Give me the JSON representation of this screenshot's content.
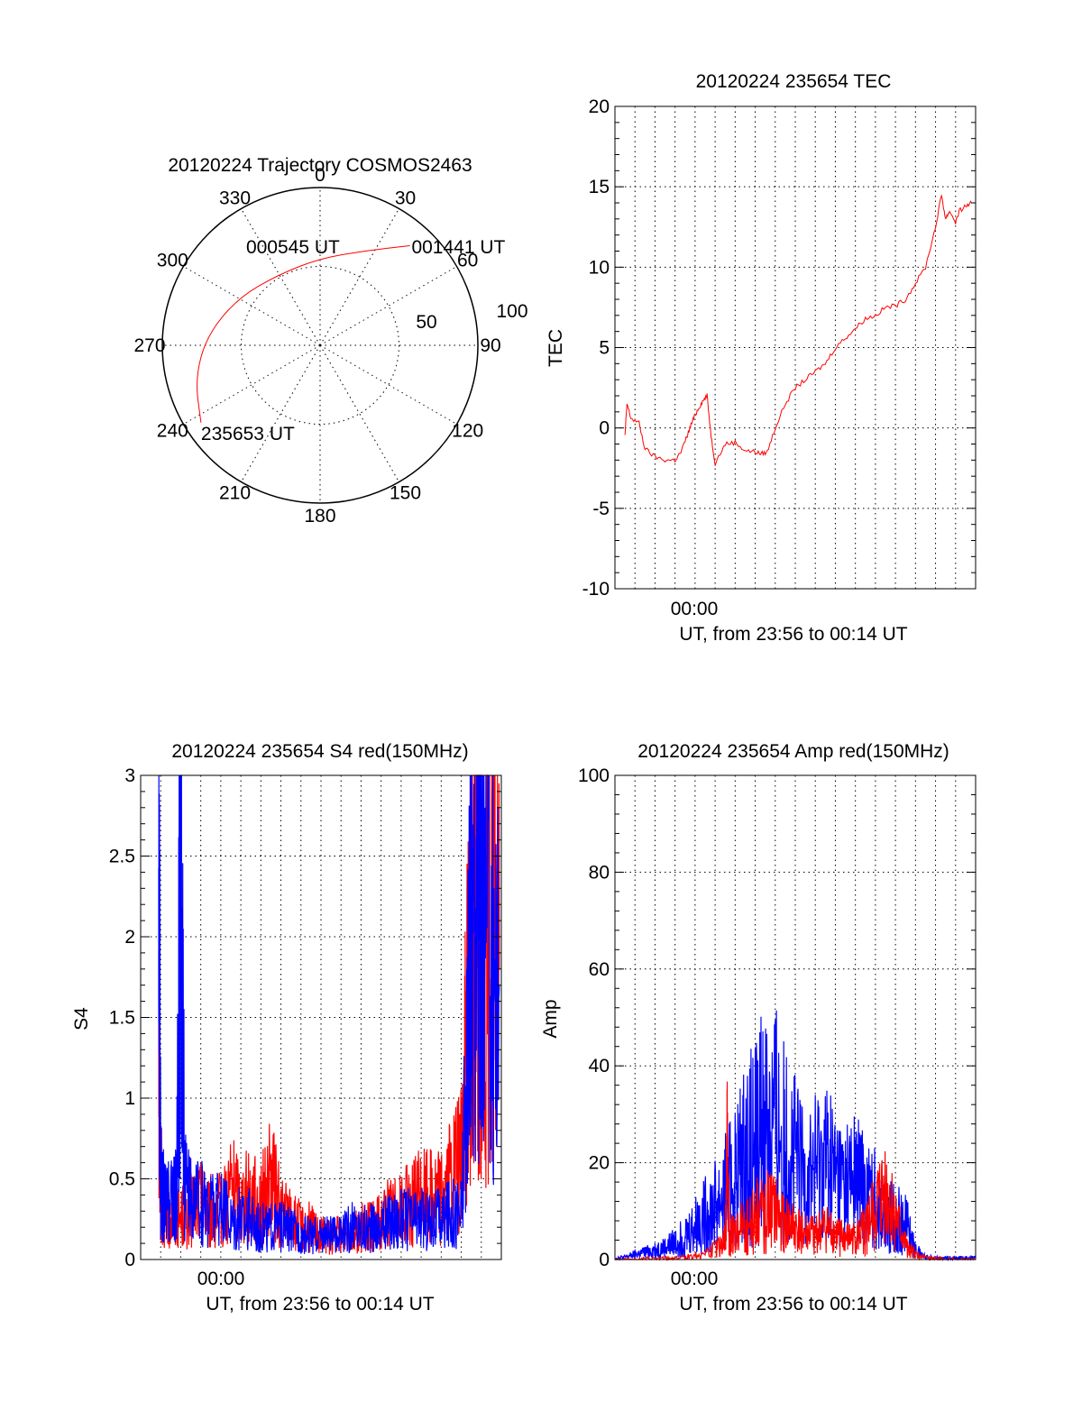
{
  "chart_data": [
    {
      "type": "polar",
      "title": "20120224 Trajectory COSMOS2463",
      "azimuth_labels": [
        "0",
        "30",
        "60",
        "90",
        "120",
        "150",
        "180",
        "210",
        "240",
        "270",
        "300",
        "330"
      ],
      "ring_labels": [
        "50",
        "100"
      ],
      "r_max": 100,
      "trajectory_color": "#ff0000",
      "trajectory": [
        {
          "az": 237,
          "el_r": 90
        },
        {
          "az": 255,
          "el_r": 82
        },
        {
          "az": 275,
          "el_r": 72
        },
        {
          "az": 300,
          "el_r": 60
        },
        {
          "az": 330,
          "el_r": 52
        },
        {
          "az": 0,
          "el_r": 55
        },
        {
          "az": 25,
          "el_r": 66
        },
        {
          "az": 42,
          "el_r": 85
        }
      ],
      "annotations": [
        {
          "text": "235653 UT",
          "az": 237,
          "el_r": 90
        },
        {
          "text": "000545 UT",
          "az": 336,
          "el_r": 38
        },
        {
          "text": "001441 UT",
          "az": 43,
          "el_r": 85
        }
      ]
    },
    {
      "type": "line",
      "title": "20120224 235654 TEC",
      "xlabel": "UT, from 23:56 to 00:14 UT",
      "ylabel": "TEC",
      "x_tick_label": "00:00",
      "ylim": [
        -10,
        20
      ],
      "yticks": [
        "-10",
        "-5",
        "0",
        "5",
        "10",
        "15",
        "20"
      ],
      "grid": true,
      "series": [
        {
          "color": "#ff0000",
          "x_min_after_2356": [
            0.5,
            0.6,
            0.8,
            1.2,
            1.5,
            2.0,
            2.5,
            3.0,
            3.3,
            3.6,
            3.8,
            4.0,
            4.2,
            4.4,
            4.6,
            4.8,
            5.0,
            5.5,
            6.0,
            6.5,
            7.0,
            7.3,
            7.6,
            8.0,
            8.5,
            9.0,
            9.5,
            10.0,
            10.5,
            11.0,
            11.5,
            12.0,
            12.5,
            13.0,
            13.5,
            14.0,
            14.5,
            15.0,
            15.5,
            16.0,
            16.3,
            16.5,
            16.7,
            17.0,
            17.2,
            17.5,
            17.8
          ],
          "values": [
            -0.5,
            1.5,
            0.6,
            0.3,
            -1.3,
            -1.8,
            -2.0,
            -2.0,
            -1.5,
            -0.5,
            0.2,
            0.8,
            1.3,
            1.7,
            2.0,
            -0.5,
            -2.2,
            -1.0,
            -0.9,
            -1.4,
            -1.5,
            -1.6,
            -1.5,
            0.0,
            1.5,
            2.5,
            3.0,
            3.5,
            4.0,
            5.0,
            5.6,
            6.2,
            6.8,
            7.0,
            7.5,
            7.6,
            8.0,
            9.0,
            10.0,
            12.5,
            14.5,
            13.0,
            13.5,
            12.8,
            13.5,
            13.8,
            14.0
          ]
        }
      ]
    },
    {
      "type": "line",
      "title": "20120224 235654 S4 red(150MHz)",
      "xlabel": "UT, from 23:56 to 00:14 UT",
      "ylabel": "S4",
      "x_tick_label": "00:00",
      "ylim": [
        0,
        3
      ],
      "yticks": [
        "0",
        "0.5",
        "1",
        "1.5",
        "2",
        "2.5",
        "3"
      ],
      "grid": true,
      "series": [
        {
          "color": "#ff0000",
          "x_min_after_2356": [
            0.9,
            1.0,
            1.2,
            1.5,
            2.0,
            2.5,
            3.0,
            3.5,
            4.0,
            4.5,
            5.0,
            5.5,
            6.0,
            6.5,
            7.0,
            7.5,
            8.0,
            8.5,
            9.0,
            9.5,
            10.0,
            10.5,
            11.0,
            11.5,
            12.0,
            12.5,
            13.0,
            13.5,
            14.0,
            14.5,
            15.0,
            15.5,
            16.0,
            16.3,
            16.5,
            16.8,
            17.0,
            17.5,
            17.9
          ],
          "values": [
            1.1,
            0.5,
            0.3,
            0.25,
            0.25,
            0.3,
            0.35,
            0.3,
            0.3,
            0.45,
            0.35,
            0.4,
            0.35,
            0.5,
            0.3,
            0.25,
            0.2,
            0.2,
            0.15,
            0.15,
            0.15,
            0.15,
            0.2,
            0.2,
            0.25,
            0.3,
            0.3,
            0.35,
            0.4,
            0.4,
            0.4,
            0.5,
            0.6,
            1.5,
            2.0,
            2.5,
            2.3,
            2.0,
            1.8
          ]
        },
        {
          "color": "#0000ff",
          "x_min_after_2356": [
            0.9,
            1.0,
            1.2,
            1.5,
            1.8,
            2.0,
            2.2,
            2.5,
            3.0,
            3.5,
            4.0,
            4.5,
            5.0,
            5.5,
            6.0,
            6.5,
            7.0,
            7.5,
            8.0,
            8.5,
            9.0,
            9.5,
            10.0,
            10.5,
            11.0,
            11.5,
            12.0,
            12.5,
            13.0,
            13.5,
            14.0,
            14.5,
            15.0,
            15.5,
            16.0,
            16.3,
            16.5,
            16.8,
            17.0,
            17.5,
            17.9
          ],
          "values": [
            2.5,
            0.5,
            0.35,
            0.35,
            0.4,
            2.8,
            0.45,
            0.35,
            0.35,
            0.35,
            0.3,
            0.25,
            0.25,
            0.25,
            0.2,
            0.2,
            0.2,
            0.18,
            0.15,
            0.15,
            0.15,
            0.15,
            0.15,
            0.2,
            0.2,
            0.2,
            0.2,
            0.25,
            0.25,
            0.25,
            0.25,
            0.25,
            0.25,
            0.3,
            0.3,
            1.2,
            2.0,
            2.5,
            2.2,
            1.9,
            1.7
          ]
        }
      ]
    },
    {
      "type": "line",
      "title": "20120224 235654 Amp red(150MHz)",
      "xlabel": "UT, from 23:56 to 00:14 UT",
      "ylabel": "Amp",
      "x_tick_label": "00:00",
      "ylim": [
        0,
        100
      ],
      "yticks": [
        "0",
        "20",
        "40",
        "60",
        "80",
        "100"
      ],
      "grid": true,
      "series": [
        {
          "color": "#0000ff",
          "x_min_after_2356": [
            0.0,
            0.5,
            1.0,
            1.5,
            2.0,
            2.5,
            3.0,
            3.5,
            4.0,
            4.5,
            5.0,
            5.5,
            6.0,
            6.5,
            7.0,
            7.5,
            8.0,
            8.5,
            9.0,
            9.5,
            10.0,
            10.5,
            11.0,
            11.5,
            12.0,
            12.5,
            13.0,
            13.5,
            14.0,
            14.5,
            15.0,
            15.5,
            16.0,
            16.5,
            17.0,
            17.5,
            18.0
          ],
          "values": [
            0.3,
            0.5,
            1.0,
            1.5,
            2.0,
            2.5,
            3.5,
            5.0,
            7.0,
            9.0,
            11.0,
            14.0,
            17.0,
            21.0,
            25.0,
            29.0,
            28.0,
            24.0,
            20.0,
            16.0,
            18.0,
            20.0,
            17.0,
            15.0,
            16.0,
            14.0,
            12.0,
            8.0,
            9.0,
            8.0,
            2.0,
            0.5,
            0.3,
            0.3,
            0.3,
            0.3,
            0.3
          ]
        },
        {
          "color": "#ff0000",
          "x_min_after_2356": [
            0.0,
            1.0,
            2.0,
            3.0,
            4.0,
            5.0,
            5.5,
            5.6,
            5.7,
            6.0,
            6.5,
            7.0,
            7.5,
            8.0,
            8.5,
            9.0,
            9.5,
            10.0,
            10.5,
            11.0,
            11.5,
            12.0,
            12.5,
            13.0,
            13.5,
            14.0,
            14.5,
            15.0,
            15.5,
            16.0,
            17.0,
            18.0
          ],
          "values": [
            0.0,
            0.0,
            0.1,
            0.3,
            0.8,
            2.0,
            4.0,
            20.0,
            5.0,
            5.0,
            7.0,
            9.0,
            10.0,
            9.0,
            7.0,
            6.0,
            5.0,
            5.0,
            6.0,
            5.0,
            4.0,
            4.0,
            6.0,
            10.0,
            13.0,
            8.0,
            3.0,
            1.0,
            0.3,
            0.1,
            0.0,
            0.0
          ]
        }
      ]
    }
  ]
}
